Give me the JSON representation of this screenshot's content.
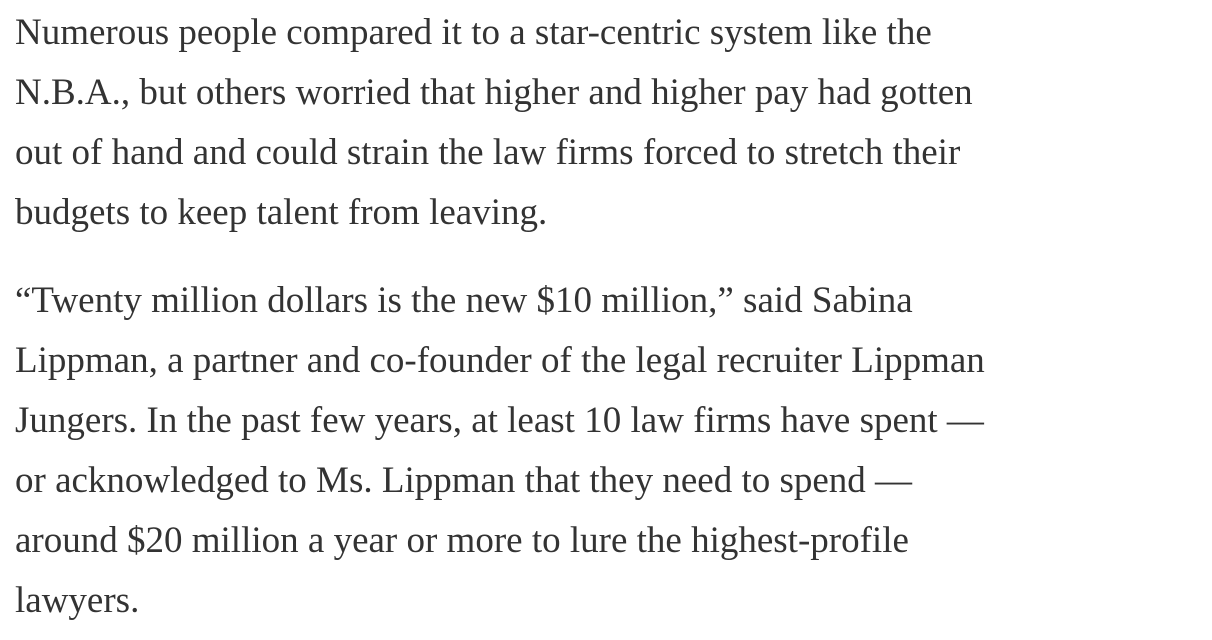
{
  "article": {
    "paragraphs": [
      {
        "lines": [
          "Numerous people compared it to a star-centric system like the",
          "N.B.A., but others worried that higher and higher pay had gotten",
          "out of hand and could strain the law firms forced to stretch their",
          "budgets to keep talent from leaving."
        ]
      },
      {
        "lines": [
          "“Twenty million dollars is the new $10 million,” said Sabina",
          "Lippman, a partner and co-founder of the legal recruiter Lippman",
          "Jungers. In the past few years, at least 10 law firms have spent —",
          "or acknowledged to Ms. Lippman that they need to spend —",
          "around $20 million a year or more to lure the highest-profile",
          "lawyers."
        ]
      }
    ]
  }
}
